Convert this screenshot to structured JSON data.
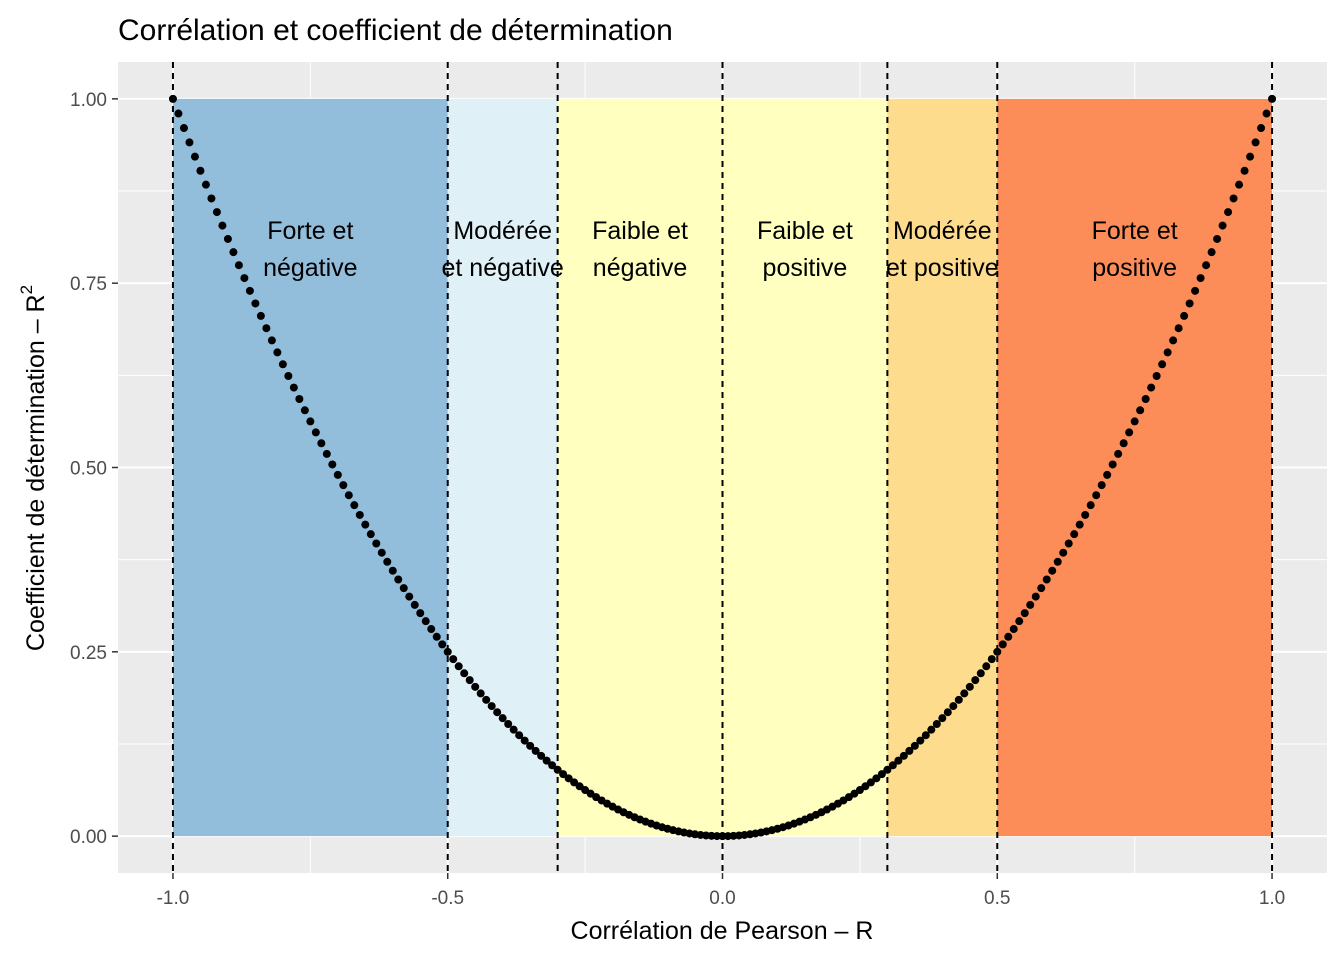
{
  "chart_data": {
    "type": "scatter",
    "title": "Corrélation et coefficient de détermination",
    "xlabel": "Corrélation de Pearson – R",
    "ylabel": "Coefficient de détermination – R",
    "ylabel_superscript": "2",
    "xlim": [
      -1.1,
      1.1
    ],
    "ylim": [
      -0.05,
      1.05
    ],
    "x_ticks": [
      {
        "value": -1.0,
        "label": "-1.0"
      },
      {
        "value": -0.5,
        "label": "-0.5"
      },
      {
        "value": 0.0,
        "label": "0.0"
      },
      {
        "value": 0.5,
        "label": "0.5"
      },
      {
        "value": 1.0,
        "label": "1.0"
      }
    ],
    "y_ticks": [
      {
        "value": 0.0,
        "label": "0.00"
      },
      {
        "value": 0.25,
        "label": "0.25"
      },
      {
        "value": 0.5,
        "label": "0.50"
      },
      {
        "value": 0.75,
        "label": "0.75"
      },
      {
        "value": 1.0,
        "label": "1.00"
      }
    ],
    "grid": true,
    "series": [
      {
        "formula": "y = x^2",
        "x_start": -1.0,
        "x_end": 1.0,
        "x_step": 0.01,
        "color": "#000000"
      }
    ],
    "zones": [
      {
        "x0": -1.0,
        "x1": -0.5,
        "y0": 0,
        "y1": 1,
        "color": "#92bddb",
        "label_lines": [
          "Forte et",
          "négative"
        ]
      },
      {
        "x0": -0.5,
        "x1": -0.3,
        "y0": 0,
        "y1": 1,
        "color": "#dff0f7",
        "label_lines": [
          "Modérée",
          "et négative"
        ]
      },
      {
        "x0": -0.3,
        "x1": 0.0,
        "y0": 0,
        "y1": 1,
        "color": "#ffffbf",
        "label_lines": [
          "Faible et",
          "négative"
        ]
      },
      {
        "x0": 0.0,
        "x1": 0.3,
        "y0": 0,
        "y1": 1,
        "color": "#ffffbf",
        "label_lines": [
          "Faible et",
          "positive"
        ]
      },
      {
        "x0": 0.3,
        "x1": 0.5,
        "y0": 0,
        "y1": 1,
        "color": "#fedc8e",
        "label_lines": [
          "Modérée",
          "et positive"
        ]
      },
      {
        "x0": 0.5,
        "x1": 1.0,
        "y0": 0,
        "y1": 1,
        "color": "#fc8d59",
        "label_lines": [
          "Forte et",
          "positive"
        ]
      }
    ],
    "vlines": [
      -1.0,
      -0.5,
      -0.3,
      0.0,
      0.3,
      0.5,
      1.0
    ],
    "colors": {
      "panel_background": "#ebebeb",
      "grid_major": "#ffffff",
      "points": "#000000",
      "vline": "#000000",
      "tick_label": "#4d4d4d"
    }
  }
}
